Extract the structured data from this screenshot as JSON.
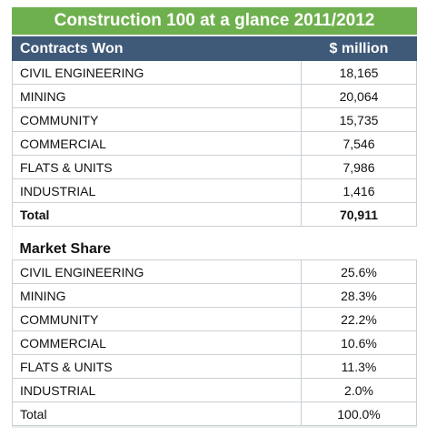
{
  "title": "Construction 100 at a glance 2011/2012",
  "contracts": {
    "header": [
      "Contracts Won",
      "$ million"
    ],
    "rows": [
      [
        "CIVIL ENGINEERING",
        "18,165"
      ],
      [
        "MINING",
        "20,064"
      ],
      [
        "COMMUNITY",
        "15,735"
      ],
      [
        "COMMERCIAL",
        "7,546"
      ],
      [
        "FLATS & UNITS",
        "7,986"
      ],
      [
        "INDUSTRIAL",
        "1,416"
      ]
    ],
    "total": [
      "Total",
      "70,911"
    ]
  },
  "market_share": {
    "title": "Market Share",
    "rows": [
      [
        "CIVIL ENGINEERING",
        "25.6%"
      ],
      [
        "MINING",
        "28.3%"
      ],
      [
        "COMMUNITY",
        "22.2%"
      ],
      [
        "COMMERCIAL",
        "10.6%"
      ],
      [
        "FLATS & UNITS",
        "11.3%"
      ],
      [
        "INDUSTRIAL",
        "2.0%"
      ]
    ],
    "total": [
      "Total",
      "100.0%"
    ]
  }
}
